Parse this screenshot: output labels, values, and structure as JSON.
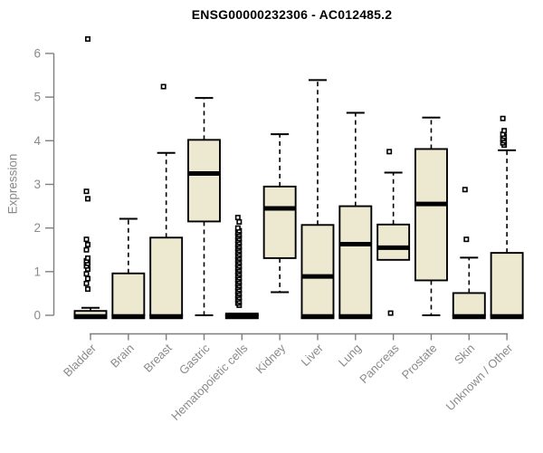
{
  "chart_data": {
    "type": "boxplot",
    "title": "ENSG00000232306 - AC012485.2",
    "xlabel": "",
    "ylabel": "Expression",
    "ylim": [
      0,
      6
    ],
    "y_ticks": [
      0,
      1,
      2,
      3,
      4,
      5,
      6
    ],
    "grid": "off",
    "legend": "none",
    "box_fill": "#EDE8D0",
    "box_stroke": "#000000",
    "axis_color": "#7f7f7f",
    "axis_text_color": "#8a8a8a",
    "categories": [
      "Bladder",
      "Brain",
      "Breast",
      "Gastric",
      "Hematopoietic cells",
      "Kidney",
      "Liver",
      "Lung",
      "Pancreas",
      "Prostate",
      "Skin",
      "Unknown / Other"
    ],
    "series": [
      {
        "name": "Bladder",
        "whisker_low": 0,
        "q1": 0,
        "median": 0,
        "q3": 0.1,
        "whisker_high": 0.17,
        "outliers": [
          0.6,
          0.73,
          0.84,
          0.95,
          1.06,
          1.13,
          1.19,
          1.25,
          1.31,
          1.5,
          1.62,
          1.74,
          2.67,
          2.84,
          6.33
        ]
      },
      {
        "name": "Brain",
        "whisker_low": 0,
        "q1": 0,
        "median": 0,
        "q3": 0.96,
        "whisker_high": 2.21,
        "outliers": []
      },
      {
        "name": "Breast",
        "whisker_low": 0,
        "q1": 0,
        "median": 0,
        "q3": 1.78,
        "whisker_high": 3.72,
        "outliers": [
          5.24
        ]
      },
      {
        "name": "Gastric",
        "whisker_low": 0,
        "q1": 2.15,
        "median": 3.25,
        "q3": 4.02,
        "whisker_high": 4.98,
        "outliers": []
      },
      {
        "name": "Hematopoietic cells",
        "whisker_low": 0,
        "q1": 0,
        "median": 0,
        "q3": 0.04,
        "whisker_high": 0.05,
        "outliers": [
          0.23,
          0.28,
          0.32,
          0.37,
          0.41,
          0.46,
          0.5,
          0.55,
          0.59,
          0.64,
          0.68,
          0.73,
          0.77,
          0.82,
          0.86,
          0.91,
          0.95,
          1.0,
          1.04,
          1.09,
          1.13,
          1.18,
          1.22,
          1.27,
          1.31,
          1.36,
          1.4,
          1.45,
          1.49,
          1.54,
          1.58,
          1.63,
          1.67,
          1.72,
          1.76,
          1.81,
          1.85,
          1.9,
          1.94,
          2.0,
          2.14,
          2.24
        ]
      },
      {
        "name": "Kidney",
        "whisker_low": 0.53,
        "q1": 1.31,
        "median": 2.45,
        "q3": 2.95,
        "whisker_high": 4.15,
        "outliers": []
      },
      {
        "name": "Liver",
        "whisker_low": 0,
        "q1": 0,
        "median": 0.89,
        "q3": 2.07,
        "whisker_high": 5.39,
        "outliers": []
      },
      {
        "name": "Lung",
        "whisker_low": 0,
        "q1": 0,
        "median": 1.63,
        "q3": 2.5,
        "whisker_high": 4.64,
        "outliers": []
      },
      {
        "name": "Pancreas",
        "whisker_low": 1.27,
        "q1": 1.27,
        "median": 1.55,
        "q3": 2.08,
        "whisker_high": 3.27,
        "outliers": [
          0.05,
          3.75
        ]
      },
      {
        "name": "Prostate",
        "whisker_low": 0,
        "q1": 0.8,
        "median": 2.55,
        "q3": 3.81,
        "whisker_high": 4.53,
        "outliers": []
      },
      {
        "name": "Skin",
        "whisker_low": 0,
        "q1": 0,
        "median": 0,
        "q3": 0.51,
        "whisker_high": 1.32,
        "outliers": [
          1.74,
          2.88
        ]
      },
      {
        "name": "Unknown / Other",
        "whisker_low": 0,
        "q1": 0,
        "median": 0,
        "q3": 1.43,
        "whisker_high": 3.78,
        "outliers": [
          3.9,
          3.95,
          4.0,
          4.05,
          4.1,
          4.15,
          4.23,
          4.51
        ]
      }
    ]
  }
}
